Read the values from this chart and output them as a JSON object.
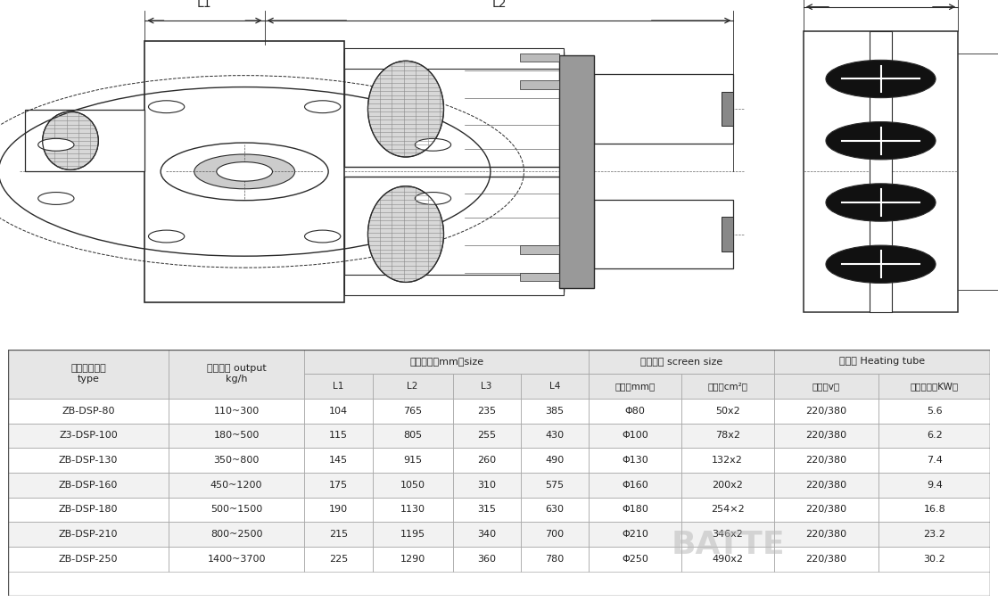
{
  "table_data": [
    [
      "ZB-DSP-80",
      "110~300",
      "104",
      "765",
      "235",
      "385",
      "Φ80",
      "50x2",
      "220/380",
      "5.6"
    ],
    [
      "Z3-DSP-100",
      "180~500",
      "115",
      "805",
      "255",
      "430",
      "Φ100",
      "78x2",
      "220/380",
      "6.2"
    ],
    [
      "ZB-DSP-130",
      "350~800",
      "145",
      "915",
      "260",
      "490",
      "Φ130",
      "132x2",
      "220/380",
      "7.4"
    ],
    [
      "ZB-DSP-160",
      "450~1200",
      "175",
      "1050",
      "310",
      "575",
      "Φ160",
      "200x2",
      "220/380",
      "9.4"
    ],
    [
      "ZB-DSP-180",
      "500~1500",
      "190",
      "1130",
      "315",
      "630",
      "Φ180",
      "254×2",
      "220/380",
      "16.8"
    ],
    [
      "ZB-DSP-210",
      "800~2500",
      "215",
      "1195",
      "340",
      "700",
      "Φ210",
      "346x2",
      "220/380",
      "23.2"
    ],
    [
      "ZB-DSP-250",
      "1400~3700",
      "225",
      "1290",
      "360",
      "780",
      "Φ250",
      "490x2",
      "220/380",
      "30.2"
    ]
  ],
  "col_widths_rel": [
    1.3,
    1.1,
    0.55,
    0.65,
    0.55,
    0.55,
    0.75,
    0.75,
    0.85,
    0.9
  ],
  "header1_labels": [
    "产品规格型号\ntype",
    "适用产量output\nkg/h",
    "轮廓尺寸（mm）size",
    "滤网尺寸 screen size",
    "加热器 Heating tube"
  ],
  "header2_labels": [
    "L1",
    "L2",
    "L3",
    "L4",
    "直径（mm）",
    "面积（cm²）",
    "电压（v）",
    "加热功率（KW）"
  ],
  "bg_header": "#e6e6e6",
  "bg_even": "#ffffff",
  "bg_odd": "#f2f2f2",
  "text_color": "#222222",
  "border_color": "#aaaaaa",
  "watermark": "BATTE"
}
